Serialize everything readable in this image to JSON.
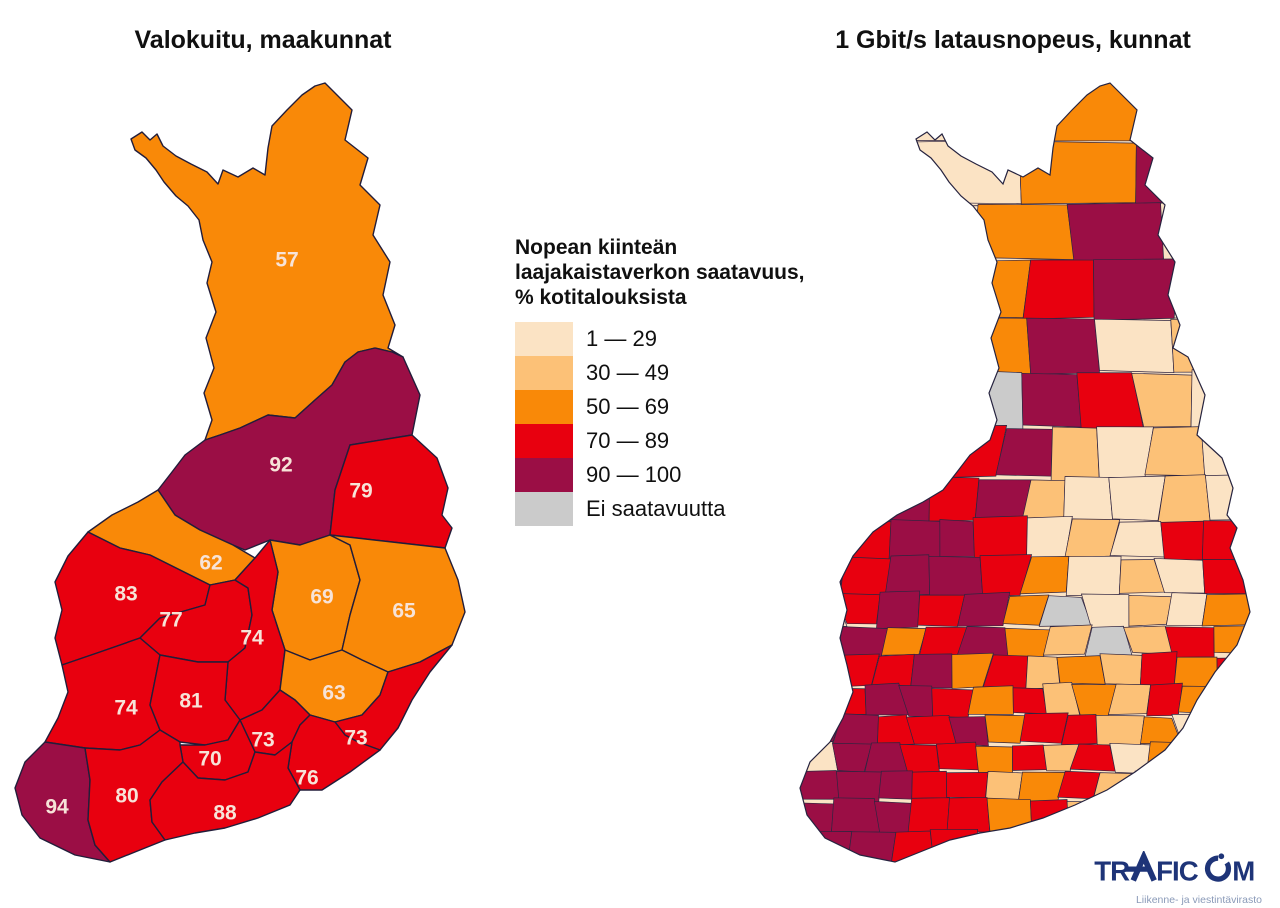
{
  "page": {
    "background": "#ffffff"
  },
  "left_map": {
    "title": "Valokuitu, maakunnat",
    "regions": [
      {
        "value": "57",
        "bucket": "3"
      },
      {
        "value": "92",
        "bucket": "5"
      },
      {
        "value": "79",
        "bucket": "4"
      },
      {
        "value": "62",
        "bucket": "3"
      },
      {
        "value": "69",
        "bucket": "3"
      },
      {
        "value": "65",
        "bucket": "3"
      },
      {
        "value": "83",
        "bucket": "4"
      },
      {
        "value": "77",
        "bucket": "4"
      },
      {
        "value": "74",
        "bucket": "4"
      },
      {
        "value": "74",
        "bucket": "4"
      },
      {
        "value": "81",
        "bucket": "4"
      },
      {
        "value": "63",
        "bucket": "3"
      },
      {
        "value": "73",
        "bucket": "4"
      },
      {
        "value": "73",
        "bucket": "4"
      },
      {
        "value": "70",
        "bucket": "4"
      },
      {
        "value": "76",
        "bucket": "4"
      },
      {
        "value": "94",
        "bucket": "5"
      },
      {
        "value": "80",
        "bucket": "4"
      },
      {
        "value": "88",
        "bucket": "4"
      }
    ],
    "label_color": "#f7e3d8"
  },
  "right_map": {
    "title": "1 Gbit/s latausnopeus, kunnat",
    "cell_rows": [
      "13",
      "1135",
      "31351",
      "213451",
      "233512",
      "213G5421",
      "324452121",
      "4554521121",
      "5455412144",
      "5455431214",
      "145453G1213",
      "4534532G243",
      "544534232434",
      "1455434232434",
      "554453442312",
      "1554434241324",
      "555442342344",
      "555443424434",
      "5544544454"
    ]
  },
  "legend": {
    "title_lines": [
      "Nopean kiinteän",
      "laajakaistaverkon saatavuus,",
      "% kotitalouksista"
    ],
    "items": [
      {
        "label": "1 — 29",
        "color": "#FBE3C4"
      },
      {
        "label": "30 — 49",
        "color": "#FCC177"
      },
      {
        "label": "50 — 69",
        "color": "#F98908"
      },
      {
        "label": "70 — 89",
        "color": "#E8000F"
      },
      {
        "label": "90 — 100",
        "color": "#9B0E45"
      },
      {
        "label": "Ei saatavuutta",
        "color": "#CBCBCB"
      }
    ]
  },
  "palette": {
    "1": "#FBE3C4",
    "2": "#FCC177",
    "3": "#F98908",
    "4": "#E8000F",
    "5": "#9B0E45",
    "G": "#CBCBCB"
  },
  "logo": {
    "text": "TRAFICOM",
    "parts": {
      "left": "TR",
      "mid": "FIC",
      "right": "M"
    },
    "tagline": "Liikenne- ja viestintävirasto",
    "color": "#1E3478"
  },
  "chart_data": [
    {
      "type": "heatmap",
      "title": "Valokuitu, maakunnat",
      "subtitle": "Nopean kiinteän laajakaistaverkon saatavuus, % kotitalouksista",
      "values": [
        57,
        92,
        79,
        62,
        69,
        65,
        83,
        77,
        74,
        74,
        81,
        63,
        73,
        73,
        70,
        76,
        94,
        80,
        88
      ],
      "value_buckets": [
        "50-69",
        "90-100",
        "70-89",
        "50-69",
        "50-69",
        "50-69",
        "70-89",
        "70-89",
        "70-89",
        "70-89",
        "70-89",
        "50-69",
        "70-89",
        "70-89",
        "70-89",
        "70-89",
        "90-100",
        "70-89",
        "70-89"
      ],
      "legend_bins": [
        "1 — 29",
        "30 — 49",
        "50 — 69",
        "70 — 89",
        "90 — 100",
        "Ei saatavuutta"
      ],
      "legend_colors": [
        "#FBE3C4",
        "#FCC177",
        "#F98908",
        "#E8000F",
        "#9B0E45",
        "#CBCBCB"
      ],
      "legend_position": "center-top"
    },
    {
      "type": "heatmap",
      "title": "1 Gbit/s latausnopeus, kunnat",
      "subtitle": "Nopean kiinteän laajakaistaverkon saatavuus, % kotitalouksista",
      "note": "Municipality-level choropleth without numeric labels; north and east mostly 1-29/30-49 and 50-69, west coast and south dominated by 70-89 and 90-100, scattered 'Ei saatavuutta' (gray) cells",
      "legend_bins": [
        "1 — 29",
        "30 — 49",
        "50 — 69",
        "70 — 89",
        "90 — 100",
        "Ei saatavuutta"
      ],
      "legend_colors": [
        "#FBE3C4",
        "#FCC177",
        "#F98908",
        "#E8000F",
        "#9B0E45",
        "#CBCBCB"
      ]
    }
  ]
}
